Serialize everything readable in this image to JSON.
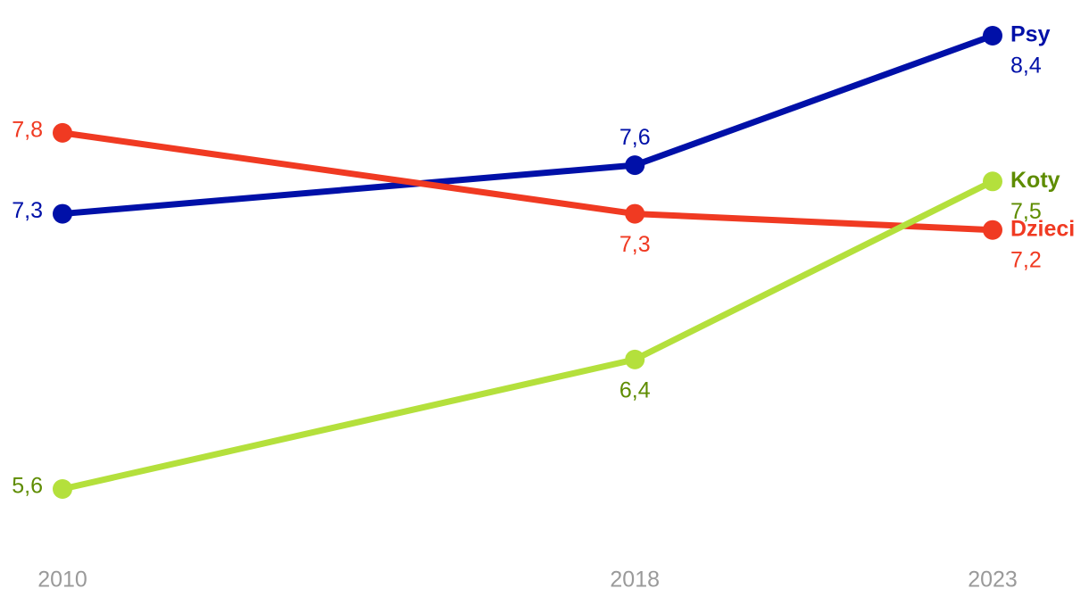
{
  "chart_data": {
    "type": "line",
    "x": [
      2010,
      2018,
      2023
    ],
    "series": [
      {
        "name": "Psy",
        "color": "#0010a8",
        "label_color": "#0010a8",
        "values": [
          7.3,
          7.6,
          8.4
        ],
        "value_labels": [
          "7,3",
          "7,6",
          "8,4"
        ]
      },
      {
        "name": "Dzieci",
        "color": "#f03a22",
        "label_color": "#f03a22",
        "values": [
          7.8,
          7.3,
          7.2
        ],
        "value_labels": [
          "7,8",
          "7,3",
          "7,2"
        ]
      },
      {
        "name": "Koty",
        "color": "#b4e03c",
        "label_color": "#5e8c00",
        "values": [
          5.6,
          6.4,
          7.5
        ],
        "value_labels": [
          "5,6",
          "6,4",
          "7,5"
        ]
      }
    ]
  }
}
